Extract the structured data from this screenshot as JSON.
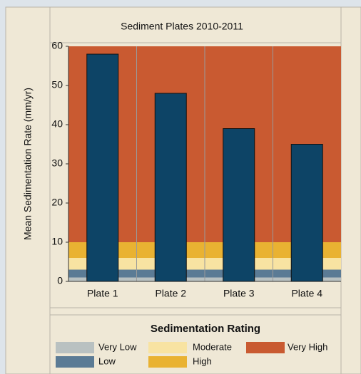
{
  "chart_data": {
    "type": "bar",
    "title": "Sediment Plates 2010-2011",
    "ylabel": "Mean Sedimentation Rate (mm/yr)",
    "categories": [
      "Plate 1",
      "Plate 2",
      "Plate 3",
      "Plate 4"
    ],
    "values": [
      58,
      48,
      39,
      35
    ],
    "color": "#0d4466",
    "ylim": [
      0,
      60
    ],
    "yticks": [
      0,
      10,
      20,
      30,
      40,
      50,
      60
    ],
    "legend": {
      "title": "Sedimentation Rating",
      "ratings": [
        {
          "name": "Very Low",
          "color": "#b9c1c1",
          "range": [
            0,
            1
          ]
        },
        {
          "name": "Low",
          "color": "#5b7b95",
          "range": [
            1,
            3
          ]
        },
        {
          "name": "Moderate",
          "color": "#f8e3a2",
          "range": [
            3,
            6
          ]
        },
        {
          "name": "High",
          "color": "#e9b232",
          "range": [
            6,
            10
          ]
        },
        {
          "name": "Very High",
          "color": "#c95a31",
          "range": [
            10,
            60
          ]
        }
      ]
    }
  }
}
